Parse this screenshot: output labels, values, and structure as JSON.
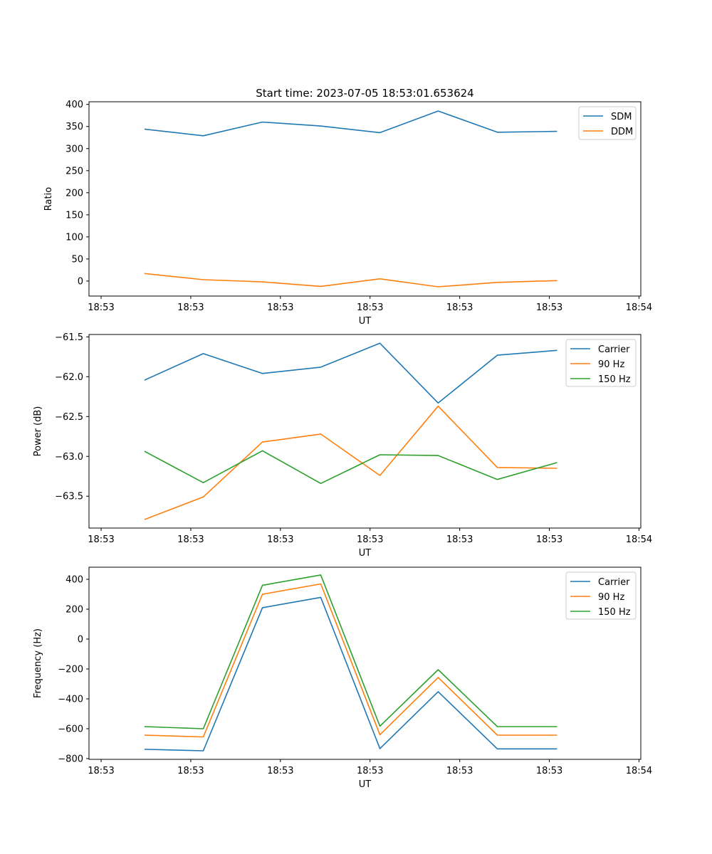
{
  "figure": {
    "title": "Start time: 2023-07-05 18:53:01.653624"
  },
  "colors": {
    "blue": "#1f77b4",
    "orange": "#ff7f0e",
    "green": "#2ca02c",
    "axis": "#000000",
    "legend_border": "#cccccc"
  },
  "chart_data": [
    {
      "type": "line",
      "title": "Start time: 2023-07-05 18:53:01.653624",
      "xlabel": "UT",
      "ylabel": "Ratio",
      "x_unit": "seconds after 18:53:00",
      "x": [
        4.9,
        11.4,
        18.0,
        24.5,
        31.1,
        37.6,
        44.2,
        50.8
      ],
      "xlim": [
        -1.35,
        60.2
      ],
      "xticks": [
        0,
        10,
        20,
        30,
        40,
        50,
        60
      ],
      "xtick_labels": [
        "18:53",
        "18:53",
        "18:53",
        "18:53",
        "18:53",
        "18:53",
        "18:54"
      ],
      "ylim": [
        -34,
        406
      ],
      "yticks": [
        0,
        50,
        100,
        150,
        200,
        250,
        300,
        350,
        400
      ],
      "ytick_labels": [
        "0",
        "50",
        "100",
        "150",
        "200",
        "250",
        "300",
        "350",
        "400"
      ],
      "grid": false,
      "legend_position": "top-right",
      "series": [
        {
          "name": "SDM",
          "color": "#1f77b4",
          "values": [
            344,
            329,
            360,
            351,
            336,
            385,
            337,
            339
          ]
        },
        {
          "name": "DDM",
          "color": "#ff7f0e",
          "values": [
            17,
            3,
            -2,
            -12,
            5,
            -13,
            -3,
            1
          ]
        }
      ]
    },
    {
      "type": "line",
      "title": "",
      "xlabel": "UT",
      "ylabel": "Power (dB)",
      "x_unit": "seconds after 18:53:00",
      "x": [
        4.9,
        11.4,
        18.0,
        24.5,
        31.1,
        37.6,
        44.2,
        50.8
      ],
      "xlim": [
        -1.35,
        60.2
      ],
      "xticks": [
        0,
        10,
        20,
        30,
        40,
        50,
        60
      ],
      "xtick_labels": [
        "18:53",
        "18:53",
        "18:53",
        "18:53",
        "18:53",
        "18:53",
        "18:54"
      ],
      "ylim": [
        -63.9,
        -61.47
      ],
      "yticks": [
        -63.5,
        -63.0,
        -62.5,
        -62.0,
        -61.5
      ],
      "ytick_labels": [
        "−63.5",
        "−63.0",
        "−62.5",
        "−62.0",
        "−61.5"
      ],
      "grid": false,
      "legend_position": "top-right",
      "series": [
        {
          "name": "Carrier",
          "color": "#1f77b4",
          "values": [
            -62.04,
            -61.71,
            -61.96,
            -61.88,
            -61.58,
            -62.33,
            -61.73,
            -61.67
          ]
        },
        {
          "name": "90 Hz",
          "color": "#ff7f0e",
          "values": [
            -63.79,
            -63.51,
            -62.82,
            -62.72,
            -63.24,
            -62.37,
            -63.14,
            -63.15
          ]
        },
        {
          "name": "150 Hz",
          "color": "#2ca02c",
          "values": [
            -62.94,
            -63.33,
            -62.93,
            -63.34,
            -62.98,
            -62.99,
            -63.29,
            -63.08
          ]
        }
      ]
    },
    {
      "type": "line",
      "title": "",
      "xlabel": "UT",
      "ylabel": "Frequency (Hz)",
      "x_unit": "seconds after 18:53:00",
      "x": [
        4.9,
        11.4,
        18.0,
        24.5,
        31.1,
        37.6,
        44.2,
        50.8
      ],
      "xlim": [
        -1.35,
        60.2
      ],
      "xticks": [
        0,
        10,
        20,
        30,
        40,
        50,
        60
      ],
      "xtick_labels": [
        "18:53",
        "18:53",
        "18:53",
        "18:53",
        "18:53",
        "18:53",
        "18:54"
      ],
      "ylim": [
        -805,
        481
      ],
      "yticks": [
        -800,
        -600,
        -400,
        -200,
        0,
        200,
        400
      ],
      "ytick_labels": [
        "−800",
        "−600",
        "−400",
        "−200",
        "0",
        "200",
        "400"
      ],
      "grid": false,
      "legend_position": "top-right",
      "series": [
        {
          "name": "Carrier",
          "color": "#1f77b4",
          "values": [
            -738,
            -748,
            210,
            279,
            -733,
            -352,
            -735,
            -735
          ]
        },
        {
          "name": "90 Hz",
          "color": "#ff7f0e",
          "values": [
            -643,
            -655,
            300,
            369,
            -640,
            -257,
            -643,
            -643
          ]
        },
        {
          "name": "150 Hz",
          "color": "#2ca02c",
          "values": [
            -586,
            -600,
            360,
            429,
            -583,
            -205,
            -586,
            -586
          ]
        }
      ]
    }
  ]
}
